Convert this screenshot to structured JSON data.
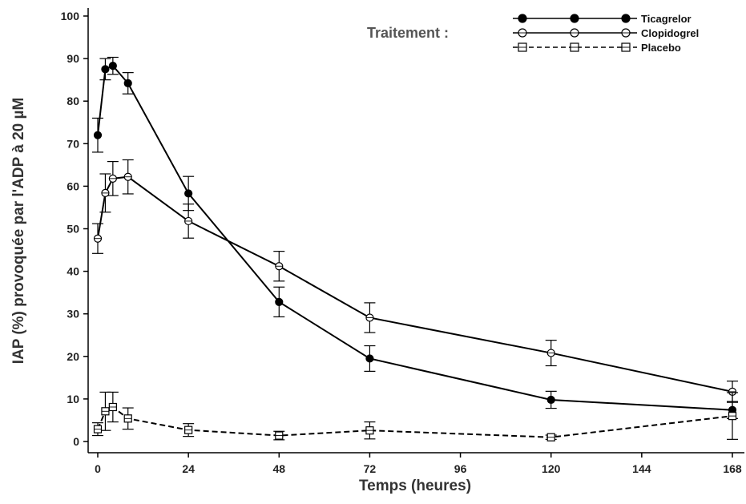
{
  "chart_data": {
    "type": "line",
    "xlabel": "Temps (heures)",
    "ylabel": "IAP (%) provoquée par l'ADP à 20 µM",
    "xlim": [
      0,
      168
    ],
    "ylim": [
      0,
      100
    ],
    "x_ticks": [
      0,
      24,
      48,
      72,
      96,
      120,
      144,
      168
    ],
    "y_ticks": [
      0,
      10,
      20,
      30,
      40,
      50,
      60,
      70,
      80,
      90,
      100
    ],
    "legend_title": "Traitement :",
    "legend_position": "top-right",
    "grid": false,
    "series": [
      {
        "name": "Ticagrelor",
        "marker": "filled-circle",
        "line": "solid",
        "color": "#000000",
        "x": [
          0,
          2,
          4,
          8,
          24,
          48,
          72,
          120,
          168
        ],
        "y": [
          72,
          87.5,
          88.3,
          84.2,
          58.3,
          32.8,
          19.5,
          9.8,
          7.4
        ],
        "error": [
          4,
          2.5,
          2,
          2.5,
          4,
          3.5,
          3,
          2,
          2
        ]
      },
      {
        "name": "Clopidogrel",
        "marker": "open-circle",
        "line": "solid",
        "color": "#000000",
        "x": [
          0,
          2,
          4,
          8,
          24,
          48,
          72,
          120,
          168
        ],
        "y": [
          47.7,
          58.4,
          61.8,
          62.2,
          51.8,
          41.2,
          29.1,
          20.8,
          11.7
        ],
        "error": [
          3.5,
          4.5,
          4,
          4,
          4,
          3.5,
          3.5,
          3,
          2.5
        ]
      },
      {
        "name": "Placebo",
        "marker": "open-square",
        "line": "dashed",
        "color": "#000000",
        "x": [
          0,
          2,
          4,
          8,
          24,
          48,
          72,
          120,
          168
        ],
        "y": [
          2.9,
          7.1,
          8.1,
          5.4,
          2.7,
          1.4,
          2.6,
          1.0,
          6.0
        ],
        "error": [
          1.5,
          4.5,
          3.5,
          2.5,
          1.5,
          1,
          2,
          0.5,
          5.5
        ]
      }
    ]
  }
}
